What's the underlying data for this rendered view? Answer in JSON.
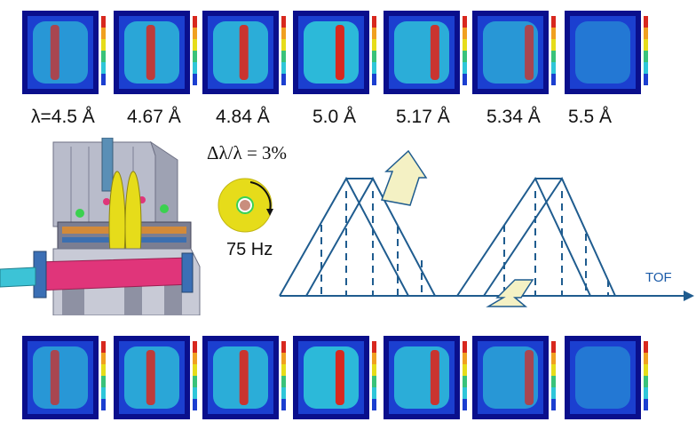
{
  "wavelength_labels": [
    "λ=4.5 Å",
    "4.67 Å",
    "4.84 Å",
    "5.0 Å",
    "5.17 Å",
    "5.34 Å",
    "5.5 Å"
  ],
  "formula": "Δλ/λ = 3%",
  "chopper_frequency": "75 Hz",
  "axis_label": "TOF",
  "panels": [
    {
      "band": 0.4,
      "strength": 0.55
    },
    {
      "band": 0.48,
      "strength": 0.75
    },
    {
      "band": 0.56,
      "strength": 0.85
    },
    {
      "band": 0.66,
      "strength": 1.0
    },
    {
      "band": 0.74,
      "strength": 0.85
    },
    {
      "band": 0.84,
      "strength": 0.55
    },
    {
      "band": 0.92,
      "strength": 0.15
    }
  ],
  "colors": {
    "frame_blue": "#0a0f8c",
    "panel_bg_blue": "#1b3fd0",
    "sample_cyan": "#2fc6d9",
    "band_red": "#d8281e",
    "diagram_line": "#1f5c8f",
    "arrow_fill": "#f4f1c4",
    "beam_magenta": "#e0357a",
    "beam_cyan": "#3cc3d6",
    "chopper_yellow": "#e6dc1a"
  }
}
